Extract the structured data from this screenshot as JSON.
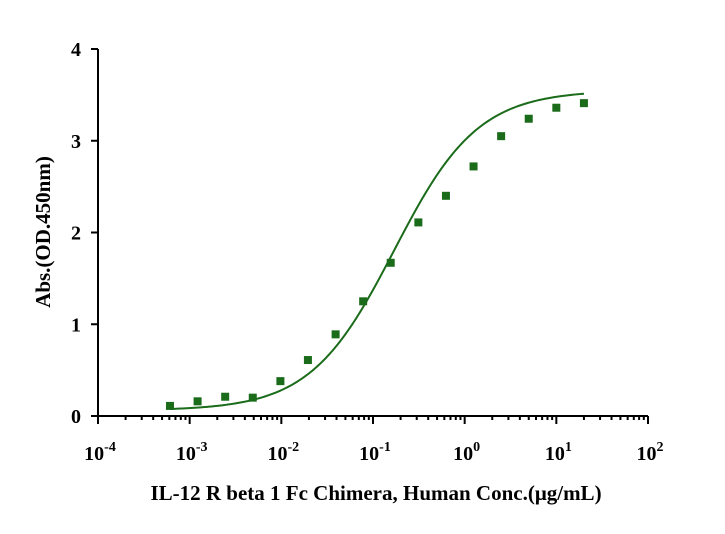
{
  "chart_data": {
    "type": "scatter",
    "xlabel": "IL-12 R beta 1 Fc Chimera, Human Conc.(μg/mL)",
    "ylabel": "Abs.(OD.450nm)",
    "x_scale": "log",
    "xlim": [
      0.0001,
      100
    ],
    "ylim": [
      0,
      4
    ],
    "x_ticks": [
      {
        "base": "10",
        "exp": "-4"
      },
      {
        "base": "10",
        "exp": "-3"
      },
      {
        "base": "10",
        "exp": "-2"
      },
      {
        "base": "10",
        "exp": "-1"
      },
      {
        "base": "10",
        "exp": "0"
      },
      {
        "base": "10",
        "exp": "1"
      },
      {
        "base": "10",
        "exp": "2"
      }
    ],
    "y_ticks": [
      "0",
      "1",
      "2",
      "3",
      "4"
    ],
    "grid": false,
    "colors": {
      "series": "#1a6b1a"
    },
    "series": [
      {
        "x": [
          0.00061,
          0.00122,
          0.00244,
          0.00488,
          0.00977,
          0.0195,
          0.0391,
          0.0781,
          0.156,
          0.3125,
          0.625,
          1.25,
          2.5,
          5,
          10,
          20
        ],
        "y": [
          0.11,
          0.16,
          0.21,
          0.2,
          0.38,
          0.61,
          0.89,
          1.25,
          1.67,
          2.11,
          2.4,
          2.72,
          3.05,
          3.24,
          3.36,
          3.41
        ]
      }
    ]
  }
}
